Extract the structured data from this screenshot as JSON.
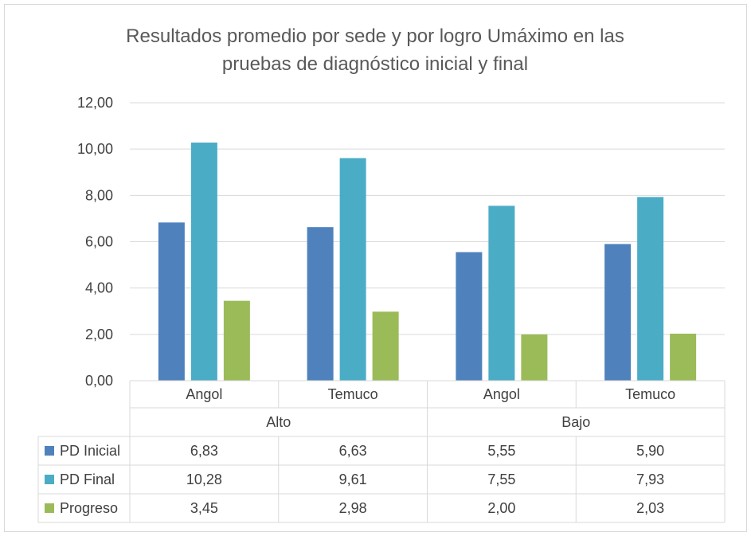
{
  "chart_data": {
    "type": "bar",
    "title": [
      "Resultados promedio por sede y por logro Umáximo en las",
      "pruebas de diagnóstico inicial y final"
    ],
    "groups": [
      {
        "label": "Alto",
        "categories": [
          "Angol",
          "Temuco"
        ]
      },
      {
        "label": "Bajo",
        "categories": [
          "Angol",
          "Temuco"
        ]
      }
    ],
    "categories": [
      "Angol",
      "Temuco",
      "Angol",
      "Temuco"
    ],
    "series": [
      {
        "name": "PD Inicial",
        "color": "#4f81bd",
        "values": [
          6.83,
          6.63,
          5.55,
          5.9
        ],
        "labels": [
          "6,83",
          "6,63",
          "5,55",
          "5,90"
        ]
      },
      {
        "name": "PD Final",
        "color": "#4bacc6",
        "values": [
          10.28,
          9.61,
          7.55,
          7.93
        ],
        "labels": [
          "10,28",
          "9,61",
          "7,55",
          "7,93"
        ]
      },
      {
        "name": "Progreso",
        "color": "#9bbb59",
        "values": [
          3.45,
          2.98,
          2.0,
          2.03
        ],
        "labels": [
          "3,45",
          "2,98",
          "2,00",
          "2,03"
        ]
      }
    ],
    "ylim": [
      0,
      12
    ],
    "yticks": [
      "0,00",
      "2,00",
      "4,00",
      "6,00",
      "8,00",
      "10,00",
      "12,00"
    ],
    "grid": true,
    "data_table": true
  }
}
